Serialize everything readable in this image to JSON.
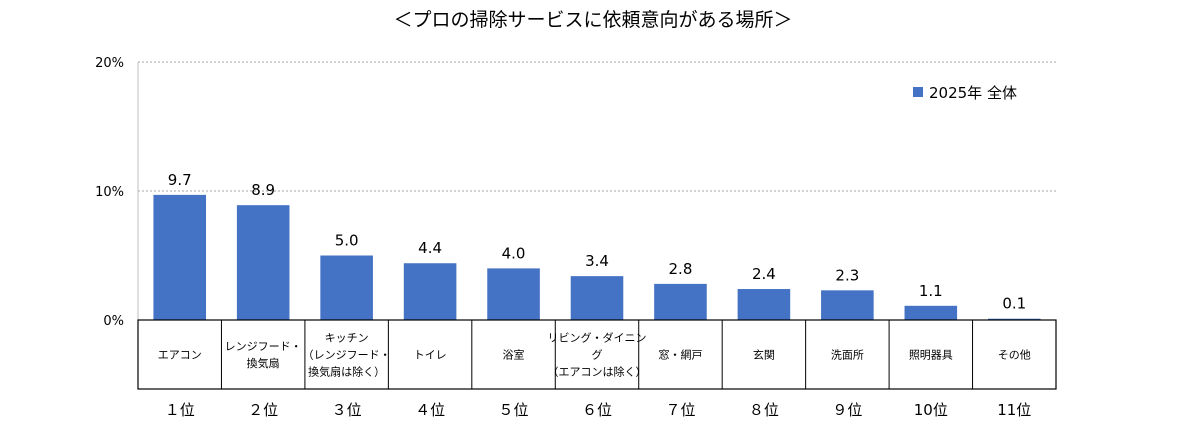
{
  "chart_data": {
    "type": "bar",
    "title": "＜プロの掃除サービスに依頼意向がある場所＞",
    "ylim": [
      0,
      20
    ],
    "yticks": [
      {
        "value": 0,
        "label": "0%"
      },
      {
        "value": 10,
        "label": "10%"
      },
      {
        "value": 20,
        "label": "20%"
      }
    ],
    "grid": true,
    "legend_position": "top-right",
    "series": [
      {
        "name": "2025年 全体",
        "color": "#4472C4",
        "values": [
          9.7,
          8.9,
          5.0,
          4.4,
          4.0,
          3.4,
          2.8,
          2.4,
          2.3,
          1.1,
          0.1
        ],
        "labels": [
          "9.7",
          "8.9",
          "5.0",
          "4.4",
          "4.0",
          "3.4",
          "2.8",
          "2.4",
          "2.3",
          "1.1",
          "0.1"
        ]
      }
    ],
    "categories": [
      [
        "エアコン"
      ],
      [
        "レンジフード・",
        "換気扇"
      ],
      [
        "キッチン",
        "（レンジフード・",
        "換気扇は除く）"
      ],
      [
        "トイレ"
      ],
      [
        "浴室"
      ],
      [
        "リビング・ダイニン",
        "グ",
        "（エアコンは除く）"
      ],
      [
        "窓・網戸"
      ],
      [
        "玄関"
      ],
      [
        "洗面所"
      ],
      [
        "照明器具"
      ],
      [
        "その他"
      ]
    ],
    "ranks": [
      "１位",
      "２位",
      "３位",
      "４位",
      "５位",
      "６位",
      "７位",
      "８位",
      "９位",
      "10位",
      "11位"
    ]
  }
}
